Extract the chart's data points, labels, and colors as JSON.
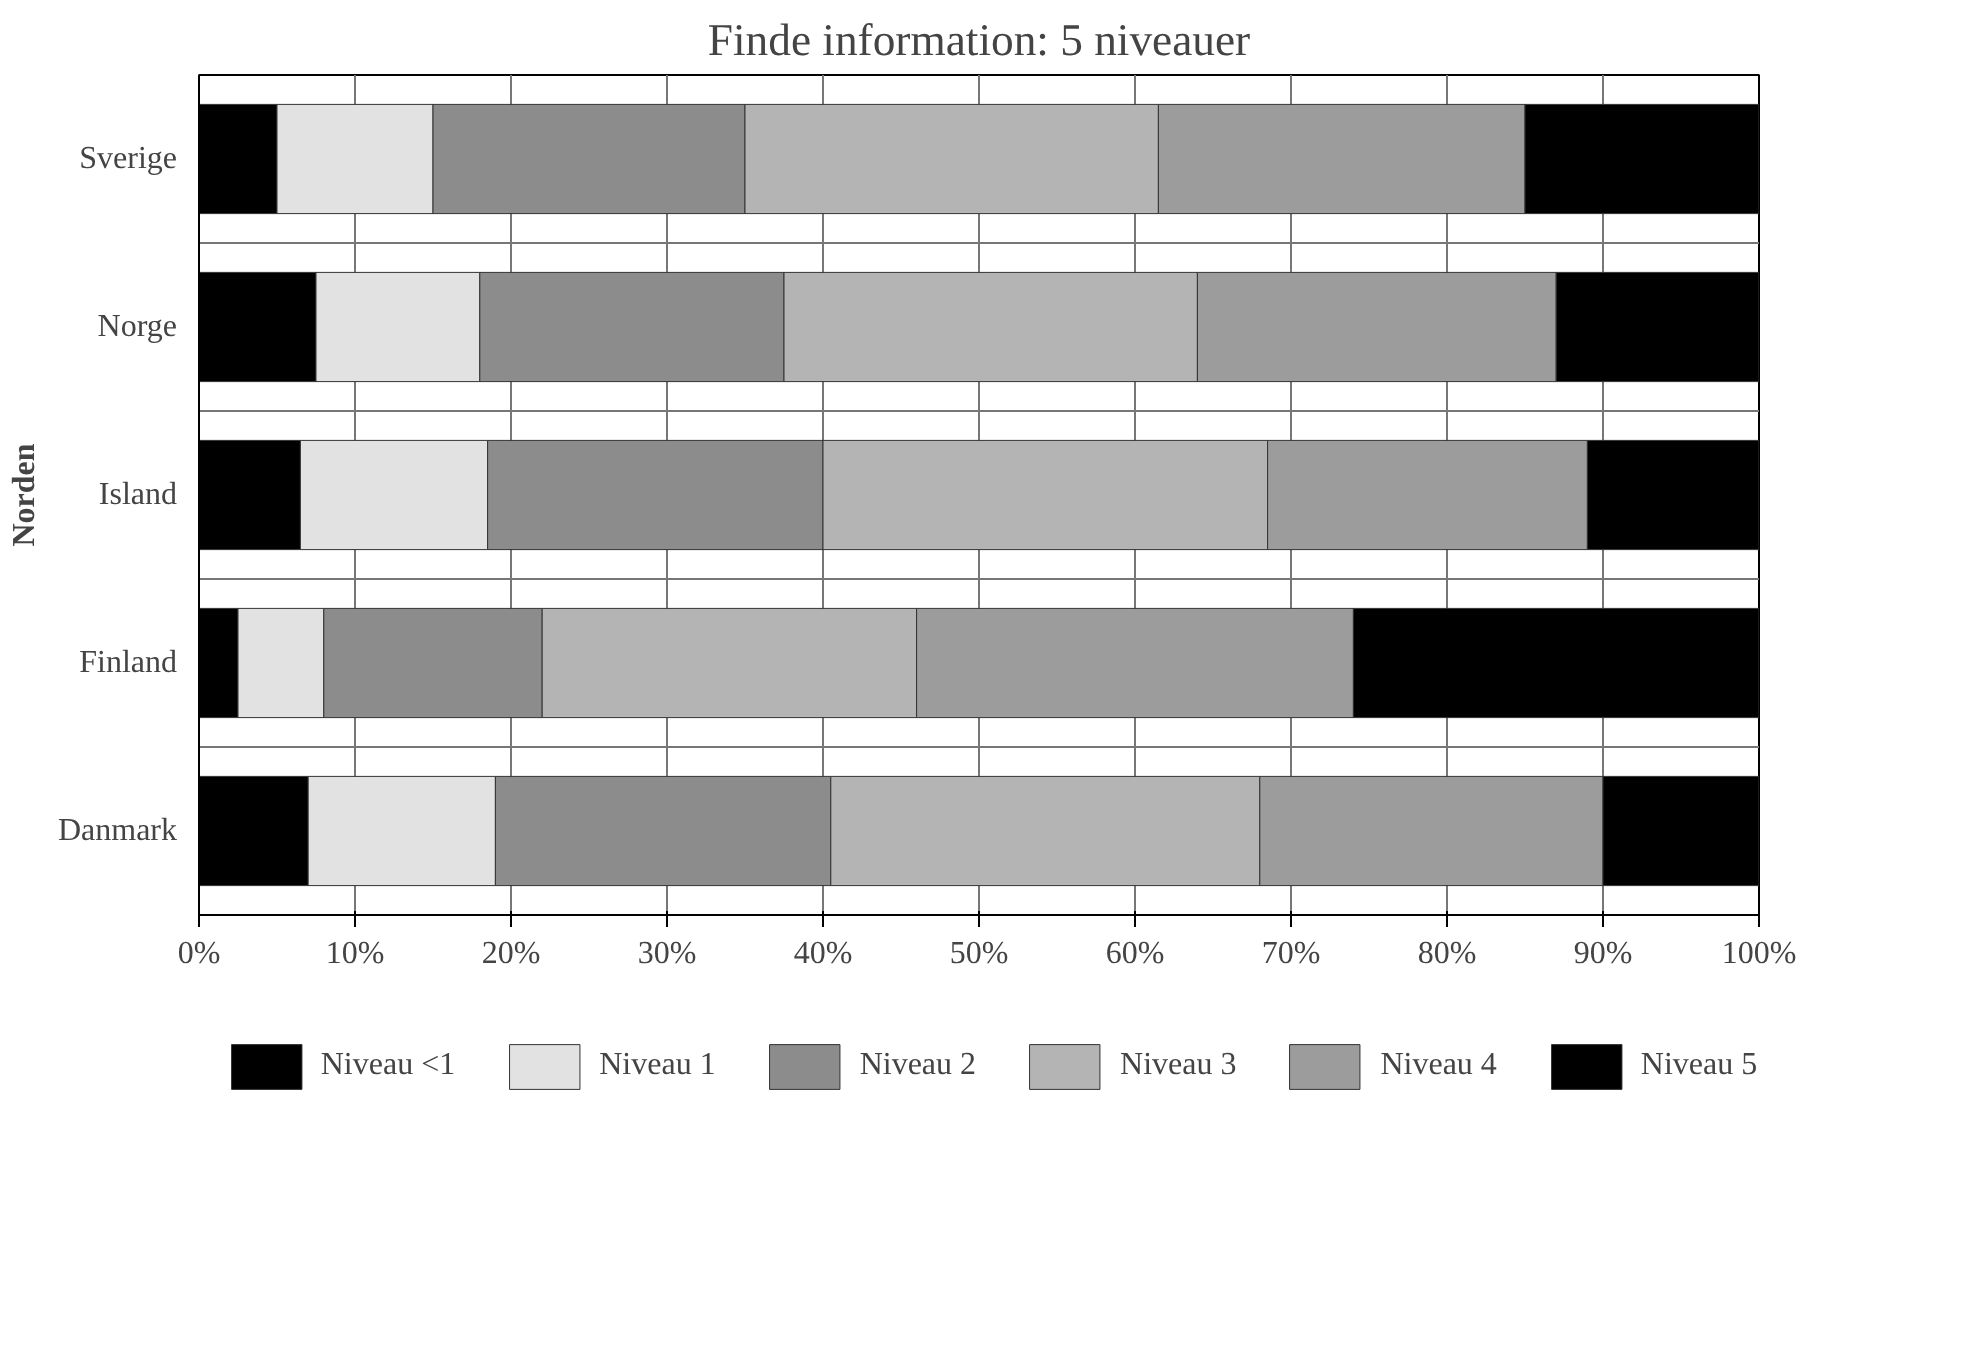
{
  "chart_data": {
    "type": "bar",
    "orientation": "horizontal",
    "stacked": true,
    "title": "Finde information: 5 niveauer",
    "ylabel": "Norden",
    "categories": [
      "Sverige",
      "Norge",
      "Island",
      "Finland",
      "Danmark"
    ],
    "series": [
      {
        "name": "Niveau <1",
        "color": "#000000",
        "values": [
          5,
          7.5,
          6.5,
          2.5,
          7
        ]
      },
      {
        "name": "Niveau 1",
        "color": "#e2e2e2",
        "values": [
          10,
          10.5,
          12,
          5.5,
          12
        ]
      },
      {
        "name": "Niveau 2",
        "color": "#8c8c8c",
        "values": [
          20,
          19.5,
          21.5,
          14,
          21.5
        ]
      },
      {
        "name": "Niveau 3",
        "color": "#b4b4b4",
        "values": [
          26.5,
          26.5,
          28.5,
          24,
          27.5
        ]
      },
      {
        "name": "Niveau 4",
        "color": "#9c9c9c",
        "values": [
          23.5,
          23,
          20.5,
          28,
          22
        ]
      },
      {
        "name": "Niveau 5",
        "color": "#000000",
        "values": [
          15,
          13,
          11,
          26,
          10
        ]
      }
    ],
    "xlim": [
      0,
      100
    ],
    "xticks": [
      {
        "value": 0,
        "label": "0%"
      },
      {
        "value": 10,
        "label": "10%"
      },
      {
        "value": 20,
        "label": "20%"
      },
      {
        "value": 30,
        "label": "30%"
      },
      {
        "value": 40,
        "label": "40%"
      },
      {
        "value": 50,
        "label": "50%"
      },
      {
        "value": 60,
        "label": "60%"
      },
      {
        "value": 70,
        "label": "70%"
      },
      {
        "value": 80,
        "label": "80%"
      },
      {
        "value": 90,
        "label": "90%"
      },
      {
        "value": 100,
        "label": "100%"
      }
    ],
    "grid": true,
    "legend": "bottom"
  }
}
